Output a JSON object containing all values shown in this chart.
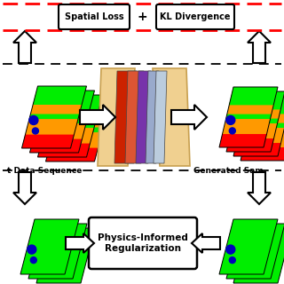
{
  "bg_color": "#ffffff",
  "colors": {
    "green": "#00ee00",
    "orange": "#ff9900",
    "red": "#ff0000",
    "blue": "#0000bb",
    "tan": "#f0d090",
    "tan_edge": "#c8a050",
    "dark_red": "#cc2200",
    "salmon": "#dd5533",
    "purple": "#7733aa",
    "gray_blue": "#99aacc",
    "light_gray": "#bbccdd",
    "black": "#111111"
  },
  "top_box1": {
    "text": "Spatial Loss"
  },
  "top_box2": {
    "text": "KL Divergence"
  },
  "plus_text": "+",
  "input_label": "t Data Sequence",
  "output_label": "Generated Sam",
  "phys_box_text": "Physics-Informed\nRegularization"
}
